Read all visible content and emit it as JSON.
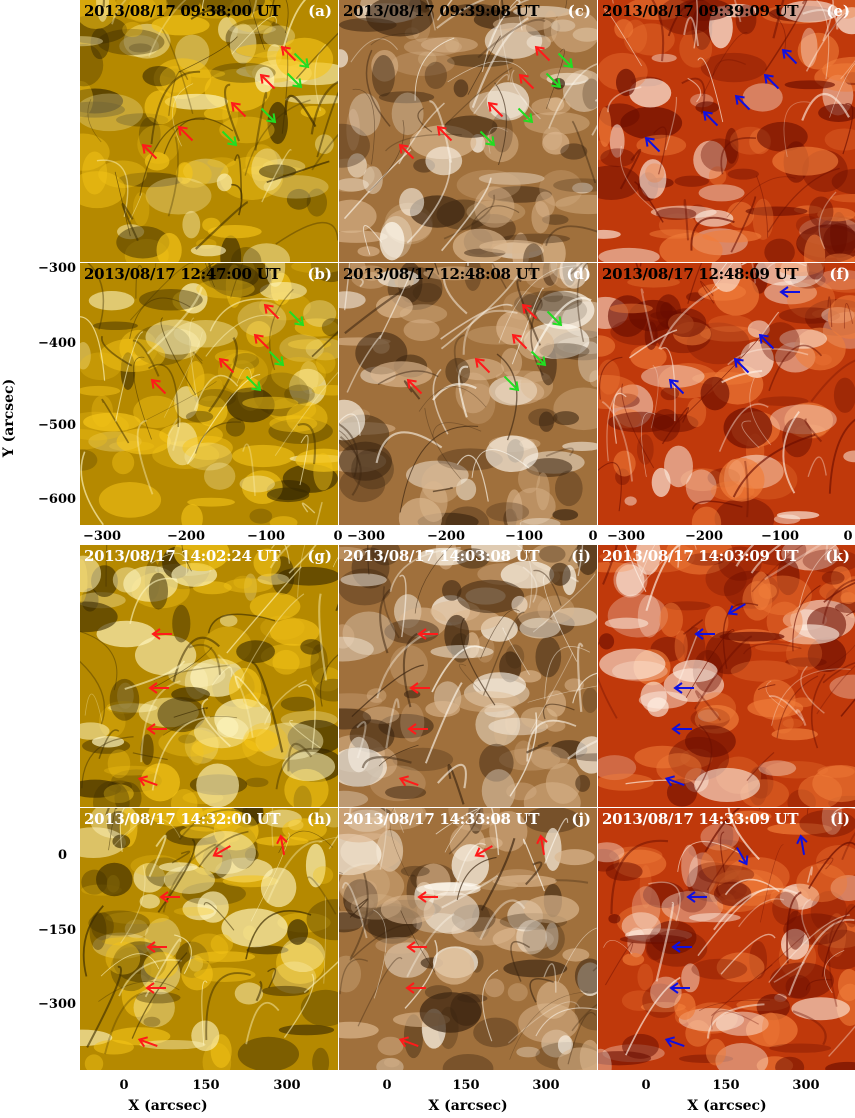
{
  "panels": [
    {
      "id": "a",
      "title": "2013/08/17 09:38:00 UT",
      "label": "(a)",
      "channel": "aia171",
      "arrows": [
        "red",
        "green"
      ]
    },
    {
      "id": "c",
      "title": "2013/08/17 09:39:08 UT",
      "label": "(c)",
      "channel": "aia193",
      "arrows": [
        "red",
        "green"
      ]
    },
    {
      "id": "e",
      "title": "2013/08/17 09:39:09 UT",
      "label": "(e)",
      "channel": "aia304",
      "arrows": [
        "blue"
      ]
    },
    {
      "id": "b",
      "title": "2013/08/17 12:47:00 UT",
      "label": "(b)",
      "channel": "aia171",
      "arrows": [
        "red",
        "green"
      ]
    },
    {
      "id": "d",
      "title": "2013/08/17 12:48:08 UT",
      "label": "(d)",
      "channel": "aia193",
      "arrows": [
        "red",
        "green"
      ]
    },
    {
      "id": "f",
      "title": "2013/08/17 12:48:09 UT",
      "label": "(f)",
      "channel": "aia304",
      "arrows": [
        "blue"
      ]
    },
    {
      "id": "g",
      "title": "2013/08/17 14:02:24 UT",
      "label": "(g)",
      "channel": "aia171",
      "arrows": [
        "red"
      ]
    },
    {
      "id": "i",
      "title": "2013/08/17 14:03:08 UT",
      "label": "(i)",
      "channel": "aia193",
      "arrows": [
        "red"
      ]
    },
    {
      "id": "k",
      "title": "2013/08/17 14:03:09 UT",
      "label": "(k)",
      "channel": "aia304",
      "arrows": [
        "blue"
      ]
    },
    {
      "id": "h",
      "title": "2013/08/17 14:32:00 UT",
      "label": "(h)",
      "channel": "aia171",
      "arrows": [
        "red"
      ]
    },
    {
      "id": "j",
      "title": "2013/08/17 14:33:08 UT",
      "label": "(j)",
      "channel": "aia193",
      "arrows": [
        "red"
      ]
    },
    {
      "id": "l",
      "title": "2013/08/17 14:33:09 UT",
      "label": "(l)",
      "channel": "aia304",
      "arrows": [
        "blue"
      ]
    }
  ],
  "axes": {
    "ylabel": "Y (arcsec)",
    "xlabel": "X (arcsec)",
    "top_yticks": [
      "−300",
      "−400",
      "−500",
      "−600"
    ],
    "top_xticks": [
      "−300",
      "−200",
      "−100",
      "0"
    ],
    "bottom_yticks": [
      "0",
      "−150",
      "−300"
    ],
    "bottom_xticks": [
      "0",
      "150",
      "300"
    ]
  },
  "colors": {
    "aia171": [
      "#3a2a00",
      "#b58900",
      "#f5c518",
      "#fff6c0"
    ],
    "aia193": [
      "#3a2410",
      "#a0703c",
      "#dcb890",
      "#fffaf0"
    ],
    "aia304": [
      "#6a0d00",
      "#c0390b",
      "#f07d3a",
      "#fff3e8"
    ],
    "arrow_red": "#ff1a1a",
    "arrow_green": "#22dd22",
    "arrow_blue": "#1010e0"
  }
}
